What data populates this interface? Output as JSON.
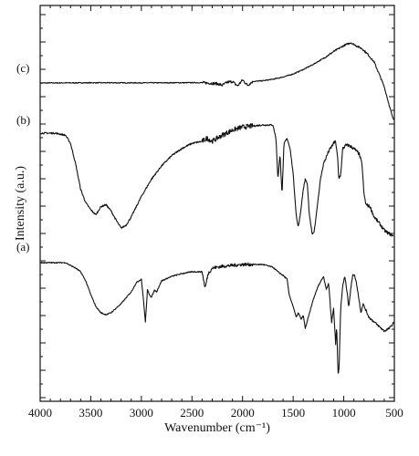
{
  "chart_data": {
    "type": "line",
    "title": "",
    "xlabel": "Wavenumber (cm⁻¹)",
    "ylabel": "Intensity (a.u.)",
    "xlim": [
      4000,
      500
    ],
    "x_reversed": true,
    "xticks": [
      "4000",
      "3500",
      "3000",
      "2500",
      "2000",
      "1500",
      "1000",
      "500"
    ],
    "y_tick_labels": false,
    "grid": false,
    "legend": "none",
    "curve_labels": [
      "(a)",
      "(b)",
      "(c)"
    ],
    "series": [
      {
        "name": "(c)",
        "noise": 0.6,
        "points": [
          [
            4000,
            0
          ],
          [
            3500,
            0.3
          ],
          [
            3000,
            0.2
          ],
          [
            2700,
            0.3
          ],
          [
            2400,
            0.5
          ],
          [
            2250,
            -1
          ],
          [
            2200,
            -3
          ],
          [
            2150,
            1
          ],
          [
            2100,
            2
          ],
          [
            2050,
            -4
          ],
          [
            2000,
            4
          ],
          [
            1950,
            -3
          ],
          [
            1900,
            2
          ],
          [
            1800,
            3
          ],
          [
            1700,
            5
          ],
          [
            1600,
            8
          ],
          [
            1500,
            12
          ],
          [
            1400,
            18
          ],
          [
            1300,
            25
          ],
          [
            1200,
            33
          ],
          [
            1100,
            42
          ],
          [
            1000,
            50
          ],
          [
            930,
            54
          ],
          [
            880,
            50
          ],
          [
            820,
            46
          ],
          [
            760,
            38
          ],
          [
            700,
            28
          ],
          [
            650,
            12
          ],
          [
            600,
            -5
          ],
          [
            560,
            -25
          ],
          [
            520,
            -45
          ],
          [
            505,
            -50
          ]
        ]
      },
      {
        "name": "(b)",
        "noise": 0.8,
        "points": [
          [
            4000,
            0
          ],
          [
            3850,
            0
          ],
          [
            3750,
            -2
          ],
          [
            3700,
            -10
          ],
          [
            3650,
            -30
          ],
          [
            3600,
            -55
          ],
          [
            3550,
            -68
          ],
          [
            3500,
            -75
          ],
          [
            3450,
            -80
          ],
          [
            3400,
            -72
          ],
          [
            3350,
            -70
          ],
          [
            3300,
            -76
          ],
          [
            3250,
            -85
          ],
          [
            3200,
            -93
          ],
          [
            3150,
            -90
          ],
          [
            3100,
            -82
          ],
          [
            3000,
            -62
          ],
          [
            2900,
            -45
          ],
          [
            2800,
            -32
          ],
          [
            2700,
            -22
          ],
          [
            2600,
            -15
          ],
          [
            2500,
            -10
          ],
          [
            2400,
            -8
          ],
          [
            2350,
            -5
          ],
          [
            2300,
            -8
          ],
          [
            2200,
            -2
          ],
          [
            2100,
            3
          ],
          [
            2000,
            6
          ],
          [
            1900,
            7
          ],
          [
            1800,
            8
          ],
          [
            1700,
            8
          ],
          [
            1670,
            -5
          ],
          [
            1650,
            -45
          ],
          [
            1630,
            -20
          ],
          [
            1610,
            -60
          ],
          [
            1590,
            -10
          ],
          [
            1560,
            -5
          ],
          [
            1530,
            -15
          ],
          [
            1500,
            -40
          ],
          [
            1470,
            -80
          ],
          [
            1450,
            -92
          ],
          [
            1430,
            -80
          ],
          [
            1400,
            -55
          ],
          [
            1380,
            -45
          ],
          [
            1360,
            -50
          ],
          [
            1340,
            -80
          ],
          [
            1310,
            -100
          ],
          [
            1290,
            -95
          ],
          [
            1260,
            -70
          ],
          [
            1230,
            -45
          ],
          [
            1200,
            -30
          ],
          [
            1150,
            -18
          ],
          [
            1100,
            -10
          ],
          [
            1080,
            -8
          ],
          [
            1060,
            -25
          ],
          [
            1050,
            -45
          ],
          [
            1030,
            -40
          ],
          [
            1010,
            -15
          ],
          [
            980,
            -12
          ],
          [
            950,
            -12
          ],
          [
            900,
            -15
          ],
          [
            850,
            -20
          ],
          [
            820,
            -30
          ],
          [
            800,
            -60
          ],
          [
            780,
            -70
          ],
          [
            740,
            -72
          ],
          [
            700,
            -82
          ],
          [
            650,
            -88
          ],
          [
            600,
            -95
          ],
          [
            560,
            -98
          ],
          [
            520,
            -100
          ],
          [
            505,
            -102
          ]
        ]
      },
      {
        "name": "(a)",
        "noise": 0.6,
        "points": [
          [
            4000,
            0
          ],
          [
            3750,
            0
          ],
          [
            3700,
            -3
          ],
          [
            3650,
            -6
          ],
          [
            3600,
            -10
          ],
          [
            3550,
            -20
          ],
          [
            3500,
            -35
          ],
          [
            3450,
            -48
          ],
          [
            3400,
            -55
          ],
          [
            3350,
            -57
          ],
          [
            3300,
            -55
          ],
          [
            3200,
            -45
          ],
          [
            3100,
            -32
          ],
          [
            3050,
            -22
          ],
          [
            3000,
            -18
          ],
          [
            2980,
            -40
          ],
          [
            2960,
            -65
          ],
          [
            2940,
            -30
          ],
          [
            2920,
            -35
          ],
          [
            2900,
            -38
          ],
          [
            2870,
            -30
          ],
          [
            2850,
            -32
          ],
          [
            2800,
            -20
          ],
          [
            2700,
            -15
          ],
          [
            2600,
            -12
          ],
          [
            2500,
            -10
          ],
          [
            2400,
            -10
          ],
          [
            2370,
            -28
          ],
          [
            2340,
            -12
          ],
          [
            2300,
            -6
          ],
          [
            2200,
            -4
          ],
          [
            2100,
            -3
          ],
          [
            2000,
            -2
          ],
          [
            1900,
            -2
          ],
          [
            1800,
            -2
          ],
          [
            1700,
            -5
          ],
          [
            1650,
            -10
          ],
          [
            1600,
            -14
          ],
          [
            1560,
            -18
          ],
          [
            1540,
            -35
          ],
          [
            1500,
            -48
          ],
          [
            1470,
            -60
          ],
          [
            1450,
            -55
          ],
          [
            1420,
            -62
          ],
          [
            1400,
            -58
          ],
          [
            1380,
            -72
          ],
          [
            1350,
            -60
          ],
          [
            1300,
            -40
          ],
          [
            1250,
            -25
          ],
          [
            1200,
            -15
          ],
          [
            1170,
            -30
          ],
          [
            1150,
            -22
          ],
          [
            1120,
            -65
          ],
          [
            1100,
            -50
          ],
          [
            1080,
            -90
          ],
          [
            1070,
            -70
          ],
          [
            1055,
            -125
          ],
          [
            1045,
            -110
          ],
          [
            1030,
            -50
          ],
          [
            1010,
            -25
          ],
          [
            990,
            -15
          ],
          [
            970,
            -30
          ],
          [
            950,
            -48
          ],
          [
            930,
            -28
          ],
          [
            910,
            -12
          ],
          [
            890,
            -15
          ],
          [
            870,
            -25
          ],
          [
            850,
            -40
          ],
          [
            830,
            -55
          ],
          [
            810,
            -45
          ],
          [
            790,
            -50
          ],
          [
            770,
            -55
          ],
          [
            750,
            -60
          ],
          [
            700,
            -65
          ],
          [
            650,
            -70
          ],
          [
            600,
            -75
          ],
          [
            550,
            -72
          ],
          [
            520,
            -68
          ],
          [
            505,
            -65
          ]
        ]
      }
    ]
  }
}
